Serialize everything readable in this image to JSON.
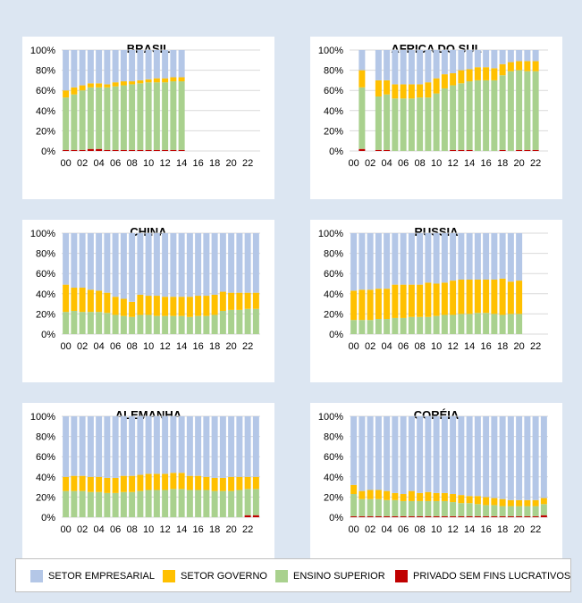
{
  "colors": {
    "empresarial": "#b4c7e7",
    "governo": "#ffc000",
    "ensino": "#a9d18e",
    "privado": "#c00000",
    "grid": "#d9d9d9"
  },
  "legend": [
    {
      "key": "empresarial",
      "label": "SETOR EMPRESARIAL"
    },
    {
      "key": "governo",
      "label": "SETOR GOVERNO"
    },
    {
      "key": "ensino",
      "label": "ENSINO SUPERIOR"
    },
    {
      "key": "privado",
      "label": "PRIVADO SEM FINS LUCRATIVOS"
    }
  ],
  "chart_data": [
    {
      "type": "bar",
      "title": "BRASIL",
      "categories": [
        "00",
        "01",
        "02",
        "03",
        "04",
        "05",
        "06",
        "07",
        "08",
        "09",
        "10",
        "11",
        "12",
        "13",
        "14",
        "15",
        "16",
        "17",
        "18",
        "19",
        "20",
        "21",
        "22",
        "23"
      ],
      "x_tick_labels": [
        "00",
        "02",
        "04",
        "06",
        "08",
        "10",
        "12",
        "14",
        "16",
        "18",
        "20",
        "22"
      ],
      "y_tick_labels": [
        "0%",
        "20%",
        "40%",
        "60%",
        "80%",
        "100%"
      ],
      "ylim": [
        0,
        100
      ],
      "stacked": true,
      "series": [
        {
          "name": "PRIVADO SEM FINS LUCRATIVOS",
          "key": "privado",
          "values": [
            1,
            1,
            1,
            2,
            2,
            1,
            1,
            1,
            1,
            1,
            1,
            1,
            1,
            1,
            1,
            null,
            null,
            null,
            null,
            null,
            null,
            null,
            null,
            null
          ]
        },
        {
          "name": "ENSINO SUPERIOR",
          "key": "ensino",
          "values": [
            52,
            55,
            59,
            61,
            61,
            62,
            63,
            64,
            65,
            66,
            67,
            67,
            67,
            68,
            68,
            null,
            null,
            null,
            null,
            null,
            null,
            null,
            null,
            null
          ]
        },
        {
          "name": "SETOR GOVERNO",
          "key": "governo",
          "values": [
            7,
            7,
            5,
            4,
            4,
            3,
            4,
            4,
            3,
            3,
            3,
            4,
            4,
            4,
            4,
            null,
            null,
            null,
            null,
            null,
            null,
            null,
            null,
            null
          ]
        },
        {
          "name": "SETOR EMPRESARIAL",
          "key": "empresarial",
          "values": [
            40,
            37,
            35,
            33,
            33,
            34,
            32,
            31,
            31,
            30,
            29,
            28,
            28,
            27,
            27,
            null,
            null,
            null,
            null,
            null,
            null,
            null,
            null,
            null
          ]
        }
      ]
    },
    {
      "type": "bar",
      "title": "AFRICA DO SUL",
      "categories": [
        "00",
        "01",
        "02",
        "03",
        "04",
        "05",
        "06",
        "07",
        "08",
        "09",
        "10",
        "11",
        "12",
        "13",
        "14",
        "15",
        "16",
        "17",
        "18",
        "19",
        "20",
        "21",
        "22",
        "23"
      ],
      "x_tick_labels": [
        "00",
        "02",
        "04",
        "06",
        "08",
        "10",
        "12",
        "14",
        "16",
        "18",
        "20",
        "22"
      ],
      "y_tick_labels": [
        "0%",
        "20%",
        "40%",
        "60%",
        "80%",
        "100%"
      ],
      "ylim": [
        0,
        100
      ],
      "stacked": true,
      "series": [
        {
          "name": "PRIVADO SEM FINS LUCRATIVOS",
          "key": "privado",
          "values": [
            null,
            2,
            null,
            1,
            1,
            0,
            0,
            0,
            0,
            0,
            0,
            0,
            1,
            1,
            1,
            0,
            0,
            0,
            1,
            0,
            1,
            1,
            1,
            null
          ]
        },
        {
          "name": "ENSINO SUPERIOR",
          "key": "ensino",
          "values": [
            null,
            61,
            null,
            53,
            55,
            52,
            52,
            52,
            53,
            53,
            57,
            62,
            64,
            66,
            68,
            70,
            70,
            70,
            74,
            79,
            79,
            78,
            78,
            null
          ]
        },
        {
          "name": "SETOR GOVERNO",
          "key": "governo",
          "values": [
            null,
            17,
            null,
            16,
            14,
            14,
            14,
            14,
            13,
            15,
            15,
            14,
            12,
            13,
            12,
            13,
            13,
            12,
            11,
            9,
            9,
            10,
            10,
            null
          ]
        },
        {
          "name": "SETOR EMPRESARIAL",
          "key": "empresarial",
          "values": [
            null,
            20,
            null,
            30,
            30,
            34,
            34,
            34,
            34,
            32,
            28,
            24,
            23,
            20,
            19,
            17,
            17,
            18,
            14,
            12,
            11,
            11,
            11,
            null
          ]
        }
      ]
    },
    {
      "type": "bar",
      "title": "CHINA",
      "categories": [
        "00",
        "01",
        "02",
        "03",
        "04",
        "05",
        "06",
        "07",
        "08",
        "09",
        "10",
        "11",
        "12",
        "13",
        "14",
        "15",
        "16",
        "17",
        "18",
        "19",
        "20",
        "21",
        "22",
        "23"
      ],
      "x_tick_labels": [
        "00",
        "02",
        "04",
        "06",
        "08",
        "10",
        "12",
        "14",
        "16",
        "18",
        "20",
        "22"
      ],
      "y_tick_labels": [
        "0%",
        "20%",
        "40%",
        "60%",
        "80%",
        "100%"
      ],
      "ylim": [
        0,
        100
      ],
      "stacked": true,
      "series": [
        {
          "name": "PRIVADO SEM FINS LUCRATIVOS",
          "key": "privado",
          "values": [
            0,
            0,
            0,
            0,
            0,
            0,
            0,
            0,
            0,
            0,
            0,
            0,
            0,
            0,
            0,
            0,
            0,
            0,
            0,
            0,
            0,
            0,
            0,
            0
          ]
        },
        {
          "name": "ENSINO SUPERIOR",
          "key": "ensino",
          "values": [
            22,
            23,
            22,
            22,
            22,
            21,
            19,
            18,
            17,
            19,
            19,
            18,
            18,
            18,
            18,
            17,
            18,
            18,
            19,
            23,
            24,
            24,
            25,
            25
          ]
        },
        {
          "name": "SETOR GOVERNO",
          "key": "governo",
          "values": [
            27,
            23,
            24,
            22,
            21,
            20,
            18,
            17,
            15,
            20,
            19,
            20,
            19,
            19,
            19,
            20,
            20,
            20,
            20,
            19,
            17,
            17,
            16,
            16
          ]
        },
        {
          "name": "SETOR EMPRESARIAL",
          "key": "empresarial",
          "values": [
            51,
            54,
            54,
            56,
            57,
            59,
            63,
            65,
            68,
            61,
            62,
            62,
            63,
            63,
            63,
            63,
            62,
            62,
            61,
            58,
            59,
            59,
            59,
            59
          ]
        }
      ]
    },
    {
      "type": "bar",
      "title": "RUSSIA",
      "categories": [
        "00",
        "01",
        "02",
        "03",
        "04",
        "05",
        "06",
        "07",
        "08",
        "09",
        "10",
        "11",
        "12",
        "13",
        "14",
        "15",
        "16",
        "17",
        "18",
        "19",
        "20",
        "21",
        "22",
        "23"
      ],
      "x_tick_labels": [
        "00",
        "02",
        "04",
        "06",
        "08",
        "10",
        "12",
        "14",
        "16",
        "18",
        "20",
        "22"
      ],
      "y_tick_labels": [
        "0%",
        "20%",
        "40%",
        "60%",
        "80%",
        "100%"
      ],
      "ylim": [
        0,
        100
      ],
      "stacked": true,
      "series": [
        {
          "name": "PRIVADO SEM FINS LUCRATIVOS",
          "key": "privado",
          "values": [
            0,
            0,
            0,
            0,
            0,
            0,
            0,
            0,
            0,
            0,
            0,
            0,
            0,
            0,
            0,
            0,
            0,
            0,
            0,
            0,
            0,
            null,
            null,
            null
          ]
        },
        {
          "name": "ENSINO SUPERIOR",
          "key": "ensino",
          "values": [
            14,
            14,
            14,
            15,
            15,
            16,
            16,
            17,
            17,
            17,
            18,
            19,
            19,
            20,
            20,
            21,
            21,
            20,
            19,
            20,
            20,
            null,
            null,
            null
          ]
        },
        {
          "name": "SETOR GOVERNO",
          "key": "governo",
          "values": [
            29,
            30,
            30,
            30,
            30,
            33,
            33,
            32,
            32,
            34,
            32,
            32,
            34,
            34,
            34,
            33,
            33,
            34,
            36,
            32,
            33,
            null,
            null,
            null
          ]
        },
        {
          "name": "SETOR EMPRESARIAL",
          "key": "empresarial",
          "values": [
            57,
            56,
            56,
            55,
            55,
            51,
            51,
            51,
            51,
            49,
            50,
            49,
            47,
            46,
            46,
            46,
            46,
            46,
            45,
            48,
            47,
            null,
            null,
            null
          ]
        }
      ]
    },
    {
      "type": "bar",
      "title": "ALEMANHA",
      "categories": [
        "00",
        "01",
        "02",
        "03",
        "04",
        "05",
        "06",
        "07",
        "08",
        "09",
        "10",
        "11",
        "12",
        "13",
        "14",
        "15",
        "16",
        "17",
        "18",
        "19",
        "20",
        "21",
        "22",
        "23"
      ],
      "x_tick_labels": [
        "00",
        "02",
        "04",
        "06",
        "08",
        "10",
        "12",
        "14",
        "16",
        "18",
        "20",
        "22"
      ],
      "y_tick_labels": [
        "0%",
        "20%",
        "40%",
        "60%",
        "80%",
        "100%"
      ],
      "ylim": [
        0,
        100
      ],
      "stacked": true,
      "series": [
        {
          "name": "PRIVADO SEM FINS LUCRATIVOS",
          "key": "privado",
          "values": [
            0,
            0,
            0,
            0,
            0,
            0,
            0,
            0,
            0,
            0,
            0,
            0,
            0,
            0,
            0,
            0,
            0,
            0,
            0,
            0,
            0,
            0,
            2,
            2
          ]
        },
        {
          "name": "ENSINO SUPERIOR",
          "key": "ensino",
          "values": [
            26,
            26,
            26,
            25,
            25,
            24,
            24,
            25,
            25,
            26,
            27,
            27,
            27,
            28,
            28,
            27,
            27,
            27,
            26,
            26,
            26,
            27,
            26,
            26
          ]
        },
        {
          "name": "SETOR GOVERNO",
          "key": "governo",
          "values": [
            14,
            15,
            15,
            15,
            15,
            15,
            15,
            16,
            16,
            16,
            16,
            16,
            16,
            16,
            16,
            14,
            14,
            13,
            13,
            13,
            14,
            13,
            12,
            12
          ]
        },
        {
          "name": "SETOR EMPRESARIAL",
          "key": "empresarial",
          "values": [
            60,
            59,
            59,
            60,
            60,
            61,
            61,
            59,
            59,
            58,
            57,
            57,
            57,
            56,
            56,
            59,
            59,
            60,
            61,
            61,
            60,
            60,
            60,
            60
          ]
        }
      ]
    },
    {
      "type": "bar",
      "title": "CORÉIA",
      "categories": [
        "00",
        "01",
        "02",
        "03",
        "04",
        "05",
        "06",
        "07",
        "08",
        "09",
        "10",
        "11",
        "12",
        "13",
        "14",
        "15",
        "16",
        "17",
        "18",
        "19",
        "20",
        "21",
        "22",
        "23"
      ],
      "x_tick_labels": [
        "00",
        "02",
        "04",
        "06",
        "08",
        "10",
        "12",
        "14",
        "16",
        "18",
        "20",
        "22"
      ],
      "y_tick_labels": [
        "0%",
        "20%",
        "40%",
        "60%",
        "80%",
        "100%"
      ],
      "ylim": [
        0,
        100
      ],
      "stacked": true,
      "series": [
        {
          "name": "PRIVADO SEM FINS LUCRATIVOS",
          "key": "privado",
          "values": [
            1,
            1,
            1,
            1,
            1,
            1,
            1,
            1,
            1,
            1,
            1,
            1,
            1,
            1,
            1,
            1,
            1,
            1,
            1,
            1,
            1,
            1,
            1,
            2
          ]
        },
        {
          "name": "ENSINO SUPERIOR",
          "key": "ensino",
          "values": [
            22,
            17,
            17,
            17,
            16,
            16,
            15,
            15,
            15,
            15,
            15,
            15,
            14,
            13,
            13,
            12,
            11,
            11,
            10,
            10,
            10,
            10,
            10,
            11
          ]
        },
        {
          "name": "SETOR GOVERNO",
          "key": "governo",
          "values": [
            9,
            8,
            9,
            9,
            9,
            7,
            7,
            10,
            8,
            9,
            8,
            8,
            8,
            8,
            7,
            8,
            8,
            7,
            7,
            6,
            6,
            6,
            6,
            6
          ]
        },
        {
          "name": "SETOR EMPRESARIAL",
          "key": "empresarial",
          "values": [
            68,
            74,
            73,
            73,
            74,
            76,
            77,
            74,
            76,
            75,
            76,
            76,
            77,
            78,
            79,
            79,
            80,
            81,
            82,
            83,
            83,
            83,
            83,
            81
          ]
        }
      ]
    }
  ]
}
